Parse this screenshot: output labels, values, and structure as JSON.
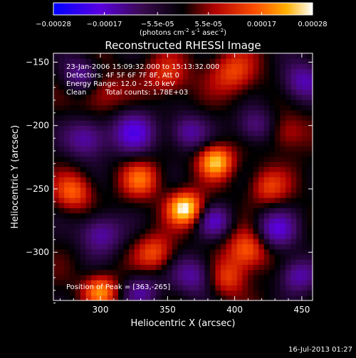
{
  "colorbar": {
    "tick_labels": [
      "-0.00028",
      "-0.00017",
      "-5.5e-05",
      "5.5e-05",
      "0.00017",
      "0.00028"
    ],
    "tick_values": [
      -0.00028,
      -0.00017,
      -5.5e-05,
      5.5e-05,
      0.00017,
      0.00028
    ],
    "range": [
      -0.00028,
      0.00028
    ],
    "unit_text": "(photons cm",
    "unit_sup1": "-2",
    "unit_mid": " s",
    "unit_sup2": "-1",
    "unit_end": " asec",
    "unit_sup3": "-2",
    "unit_close": ")",
    "colors": [
      "#0000ff",
      "#6a00d8",
      "#000000",
      "#b80000",
      "#ff5a00",
      "#ffcc00",
      "#ffffff"
    ]
  },
  "chart_data": {
    "type": "heatmap",
    "title": "Reconstructed RHESSI Image",
    "xlabel": "Heliocentric X (arcsec)",
    "ylabel": "Heliocentric Y (arcsec)",
    "xlim": [
      265,
      458
    ],
    "ylim": [
      -338,
      -143
    ],
    "x_ticks": [
      300,
      350,
      400,
      450
    ],
    "y_ticks": [
      -150,
      -200,
      -250,
      -300
    ],
    "annotations": [
      "23-Jan-2006 15:09:32.000 to 15:13:32.000",
      "Detectors: 4F 5F 6F 7F 8F, Att 0",
      "Energy Range: 12.0 - 25.0 keV",
      "Clean",
      "Total counts: 1.78E+03"
    ],
    "peak_label": "Position of Peak = [363,-265]",
    "peak": {
      "x": 363,
      "y": -265
    },
    "sources": [
      {
        "x": 363,
        "y": -265,
        "v": 1.0,
        "s": 9
      },
      {
        "x": 386,
        "y": -228,
        "v": 0.85,
        "s": 9
      },
      {
        "x": 330,
        "y": -242,
        "v": 0.55,
        "s": 10
      },
      {
        "x": 410,
        "y": -298,
        "v": 0.6,
        "s": 11
      },
      {
        "x": 340,
        "y": -300,
        "v": 0.5,
        "s": 10
      },
      {
        "x": 300,
        "y": -330,
        "v": 0.7,
        "s": 9
      },
      {
        "x": 280,
        "y": -252,
        "v": 0.55,
        "s": 10
      },
      {
        "x": 350,
        "y": -160,
        "v": 0.45,
        "s": 11
      },
      {
        "x": 400,
        "y": -158,
        "v": 0.5,
        "s": 12
      },
      {
        "x": 300,
        "y": -173,
        "v": 0.35,
        "s": 12
      },
      {
        "x": 425,
        "y": -248,
        "v": 0.45,
        "s": 10
      },
      {
        "x": 395,
        "y": -320,
        "v": 0.45,
        "s": 10
      },
      {
        "x": 440,
        "y": -205,
        "v": 0.35,
        "s": 10
      },
      {
        "x": 325,
        "y": -205,
        "v": -0.6,
        "s": 12
      },
      {
        "x": 290,
        "y": -210,
        "v": -0.55,
        "s": 11
      },
      {
        "x": 365,
        "y": -205,
        "v": -0.5,
        "s": 10
      },
      {
        "x": 300,
        "y": -285,
        "v": -0.55,
        "s": 11
      },
      {
        "x": 385,
        "y": -275,
        "v": -0.5,
        "s": 9
      },
      {
        "x": 430,
        "y": -282,
        "v": -0.6,
        "s": 11
      },
      {
        "x": 370,
        "y": -318,
        "v": -0.5,
        "s": 11
      },
      {
        "x": 447,
        "y": -318,
        "v": -0.55,
        "s": 10
      },
      {
        "x": 450,
        "y": -165,
        "v": -0.55,
        "s": 11
      },
      {
        "x": 285,
        "y": -160,
        "v": -0.5,
        "s": 10
      },
      {
        "x": 330,
        "y": -330,
        "v": -0.45,
        "s": 10
      },
      {
        "x": 415,
        "y": -200,
        "v": -0.45,
        "s": 10
      }
    ]
  },
  "footer": {
    "timestamp": "16-Jul-2013 01:27"
  }
}
